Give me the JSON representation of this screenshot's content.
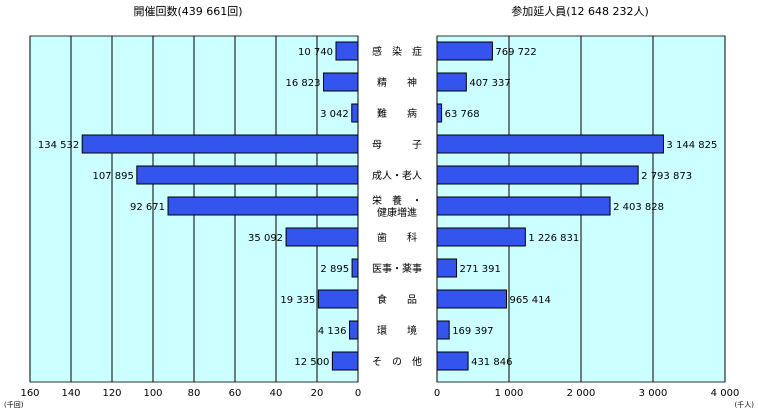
{
  "colors": {
    "plot_background": "#ccffff",
    "bar_fill": "#3355ee",
    "bar_stroke": "#000000",
    "gridline": "#000000"
  },
  "chart_data": [
    {
      "type": "bar",
      "orientation": "horizontal",
      "direction": "right-to-left",
      "title": "開催回数(439 661回)",
      "unit_label": "(千回)",
      "xlim": [
        0,
        160
      ],
      "ticks": [
        160,
        140,
        120,
        100,
        80,
        60,
        40,
        20,
        0
      ],
      "grid": true,
      "categories": [
        "感染症",
        "精神",
        "難病",
        "母子",
        "成人・老人",
        "栄養・健康増進",
        "歯科",
        "医事・薬事",
        "食品",
        "環境",
        "その他"
      ],
      "values": [
        10.74,
        16.823,
        3.042,
        134.532,
        107.895,
        92.671,
        35.092,
        2.895,
        19.335,
        4.136,
        12.5
      ],
      "value_labels": [
        "10 740",
        "16 823",
        "3 042",
        "134 532",
        "107 895",
        "92 671",
        "35 092",
        "2 895",
        "19 335",
        "4 136",
        "12 500"
      ]
    },
    {
      "type": "bar",
      "orientation": "horizontal",
      "direction": "left-to-right",
      "title": "参加延人員(12 648 232人)",
      "unit_label": "(千人)",
      "xlim": [
        0,
        4000
      ],
      "ticks": [
        0,
        1000,
        2000,
        3000,
        4000
      ],
      "tick_labels": [
        "0",
        "1 000",
        "2 000",
        "3 000",
        "4 000"
      ],
      "grid": true,
      "categories": [
        "感染症",
        "精神",
        "難病",
        "母子",
        "成人・老人",
        "栄養・健康増進",
        "歯科",
        "医事・薬事",
        "食品",
        "環境",
        "その他"
      ],
      "values": [
        769.722,
        407.337,
        63.768,
        3144.825,
        2793.873,
        2403.828,
        1226.831,
        271.391,
        965.414,
        169.397,
        431.846
      ],
      "value_labels": [
        "769 722",
        "407 337",
        "63 768",
        "3 144 825",
        "2 793 873",
        "2 403 828",
        "1 226 831",
        "271 391",
        "965 414",
        "169 397",
        "431 846"
      ]
    }
  ],
  "category_labels": [
    {
      "lines": [
        "感　染　症"
      ]
    },
    {
      "lines": [
        "精　　神"
      ]
    },
    {
      "lines": [
        "難　　病"
      ]
    },
    {
      "lines": [
        "母　　　子"
      ]
    },
    {
      "lines": [
        "成人・老人"
      ]
    },
    {
      "lines": [
        "栄　養　・",
        "健康増進"
      ]
    },
    {
      "lines": [
        "歯　　科"
      ]
    },
    {
      "lines": [
        "医事・薬事"
      ]
    },
    {
      "lines": [
        "食　　品"
      ]
    },
    {
      "lines": [
        "環　　境"
      ]
    },
    {
      "lines": [
        "そ　の　他"
      ]
    }
  ]
}
